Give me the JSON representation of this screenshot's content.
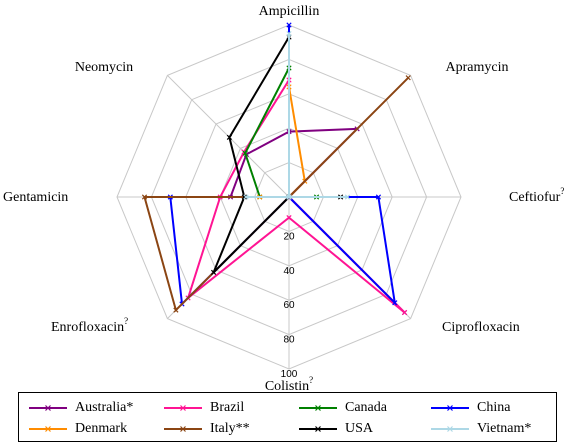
{
  "chart_data": {
    "type": "radar",
    "axes": [
      {
        "label": "Ampicillin",
        "mark": ""
      },
      {
        "label": "Apramycin",
        "mark": ""
      },
      {
        "label": "Ceftiofur",
        "mark": "?"
      },
      {
        "label": "Ciprofloxacin",
        "mark": ""
      },
      {
        "label": "Colistin",
        "mark": "?"
      },
      {
        "label": "Enrofloxacin",
        "mark": "?"
      },
      {
        "label": "Gentamicin",
        "mark": ""
      },
      {
        "label": "Neomycin",
        "mark": ""
      }
    ],
    "rlim": [
      0,
      100
    ],
    "ticks": [
      20,
      40,
      60,
      80,
      100
    ],
    "reversed_scale": true,
    "series": [
      {
        "name": "Australia*",
        "color": "#800080",
        "values": [
          62,
          44,
          100,
          5,
          100,
          100,
          66,
          65
        ]
      },
      {
        "name": "Brazil",
        "color": "#ff1493",
        "values": [
          32,
          100,
          100,
          5,
          88,
          17,
          60,
          63
        ]
      },
      {
        "name": "Canada",
        "color": "#008000",
        "values": [
          25,
          100,
          84,
          100,
          100,
          100,
          83,
          64
        ]
      },
      {
        "name": "China",
        "color": "#0000ff",
        "values": [
          0,
          100,
          48,
          13,
          100,
          12,
          31,
          100
        ]
      },
      {
        "name": "Denmark",
        "color": "#ff8c00",
        "values": [
          36,
          87,
          100,
          100,
          100,
          100,
          83,
          100
        ]
      },
      {
        "name": "Italy**",
        "color": "#8b4513",
        "values": [
          100,
          2,
          100,
          100,
          100,
          7,
          16,
          100
        ]
      },
      {
        "name": "USA",
        "color": "#000000",
        "values": [
          7,
          100,
          70,
          100,
          100,
          38,
          74,
          51
        ]
      },
      {
        "name": "Vietnam*",
        "color": "#add8e6",
        "values": [
          5,
          100,
          66,
          100,
          100,
          100,
          75,
          100
        ]
      }
    ]
  }
}
